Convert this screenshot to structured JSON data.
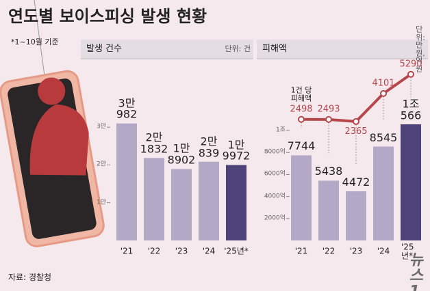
{
  "title": "연도별 보이스피싱 발생 현황",
  "note": "*1~10월 기준",
  "source": "자료: 경찰청",
  "logo": "뉴스1",
  "chart_data": [
    {
      "type": "bar",
      "subtitle": "발생 건수",
      "unit": "단위: 건",
      "categories": [
        "'21",
        "'22",
        "'23",
        "'24",
        "'25년*"
      ],
      "values": [
        30982,
        21832,
        18902,
        20839,
        19972
      ],
      "value_labels": [
        "3만\n982",
        "2만\n1832",
        "1만\n8902",
        "2만\n839",
        "1만\n9972"
      ],
      "colors": [
        "#b3a9c6",
        "#b3a9c6",
        "#b3a9c6",
        "#b3a9c6",
        "#4e4479"
      ],
      "ylim": [
        0,
        34000
      ],
      "yticks": [
        {
          "value": 10000,
          "label": "1만"
        },
        {
          "value": 20000,
          "label": "2만"
        },
        {
          "value": 30000,
          "label": "3만"
        }
      ]
    },
    {
      "type": "bar",
      "subtitle": "피해액",
      "unit": "단위: 만 원, 억 원",
      "categories": [
        "'21",
        "'22",
        "'23",
        "'24",
        "'25년*"
      ],
      "values": [
        7744,
        5438,
        4472,
        8545,
        10566
      ],
      "value_labels": [
        "7744",
        "5438",
        "4472",
        "8545",
        "1조566"
      ],
      "colors": [
        "#b3a9c6",
        "#b3a9c6",
        "#b3a9c6",
        "#b3a9c6",
        "#4e4479"
      ],
      "ylim": [
        0,
        11000
      ],
      "yticks": [
        {
          "value": 2000,
          "label": "2000억"
        },
        {
          "value": 4000,
          "label": "4000억"
        },
        {
          "value": 6000,
          "label": "6000억"
        },
        {
          "value": 8000,
          "label": "8000억"
        },
        {
          "value": 10000,
          "label": "1조"
        }
      ],
      "line": {
        "name": "1건 당\n피해액",
        "values": [
          2498,
          2493,
          2365,
          4101,
          5290
        ],
        "color": "#b5474b",
        "axis": "y2"
      },
      "y2lim": [
        -5000,
        6000
      ]
    }
  ]
}
